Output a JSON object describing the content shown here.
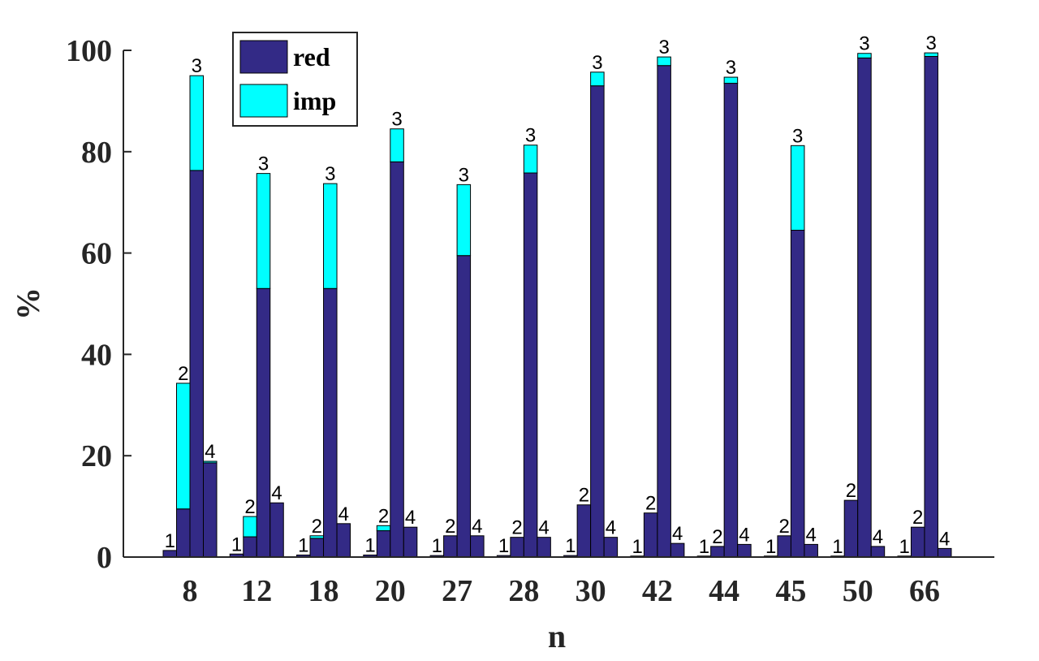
{
  "chart_data": {
    "type": "bar",
    "stacked": true,
    "xlabel": "n",
    "ylabel": "%",
    "ylim": [
      0,
      100
    ],
    "yticks": [
      0,
      20,
      40,
      60,
      80,
      100
    ],
    "grid": false,
    "legend_position": "top-left",
    "categories": [
      "8",
      "12",
      "18",
      "20",
      "27",
      "28",
      "30",
      "42",
      "44",
      "45",
      "50",
      "66"
    ],
    "bar_labels": [
      "1",
      "2",
      "3",
      "4"
    ],
    "colors": {
      "red": "#332a86",
      "imp": "#00ffff"
    },
    "series": [
      {
        "name": "red",
        "values": [
          [
            1.3,
            9.5,
            76.3,
            18.6
          ],
          [
            0.6,
            4.0,
            53.0,
            10.7
          ],
          [
            0.4,
            3.7,
            53.0,
            6.6
          ],
          [
            0.4,
            5.2,
            78.0,
            5.9
          ],
          [
            0.3,
            4.2,
            59.5,
            4.2
          ],
          [
            0.3,
            3.9,
            75.8,
            3.9
          ],
          [
            0.3,
            10.3,
            93.0,
            3.9
          ],
          [
            0.2,
            8.7,
            97.0,
            2.7
          ],
          [
            0.2,
            2.1,
            93.5,
            2.5
          ],
          [
            0.2,
            4.2,
            64.5,
            2.5
          ],
          [
            0.2,
            11.2,
            98.5,
            2.1
          ],
          [
            0.2,
            5.9,
            98.8,
            1.7
          ]
        ]
      },
      {
        "name": "imp",
        "values": [
          [
            0.0,
            24.8,
            18.7,
            0.3
          ],
          [
            0.0,
            4.0,
            22.7,
            0.0
          ],
          [
            0.0,
            0.5,
            20.7,
            0.0
          ],
          [
            0.0,
            1.0,
            6.5,
            0.0
          ],
          [
            0.0,
            0.0,
            14.0,
            0.0
          ],
          [
            0.0,
            0.0,
            5.5,
            0.0
          ],
          [
            0.0,
            0.0,
            2.7,
            0.0
          ],
          [
            0.0,
            0.0,
            1.7,
            0.0
          ],
          [
            0.0,
            0.0,
            1.2,
            0.0
          ],
          [
            0.0,
            0.0,
            16.7,
            0.0
          ],
          [
            0.0,
            0.0,
            0.9,
            0.0
          ],
          [
            0.0,
            0.0,
            0.7,
            0.0
          ]
        ]
      }
    ]
  }
}
